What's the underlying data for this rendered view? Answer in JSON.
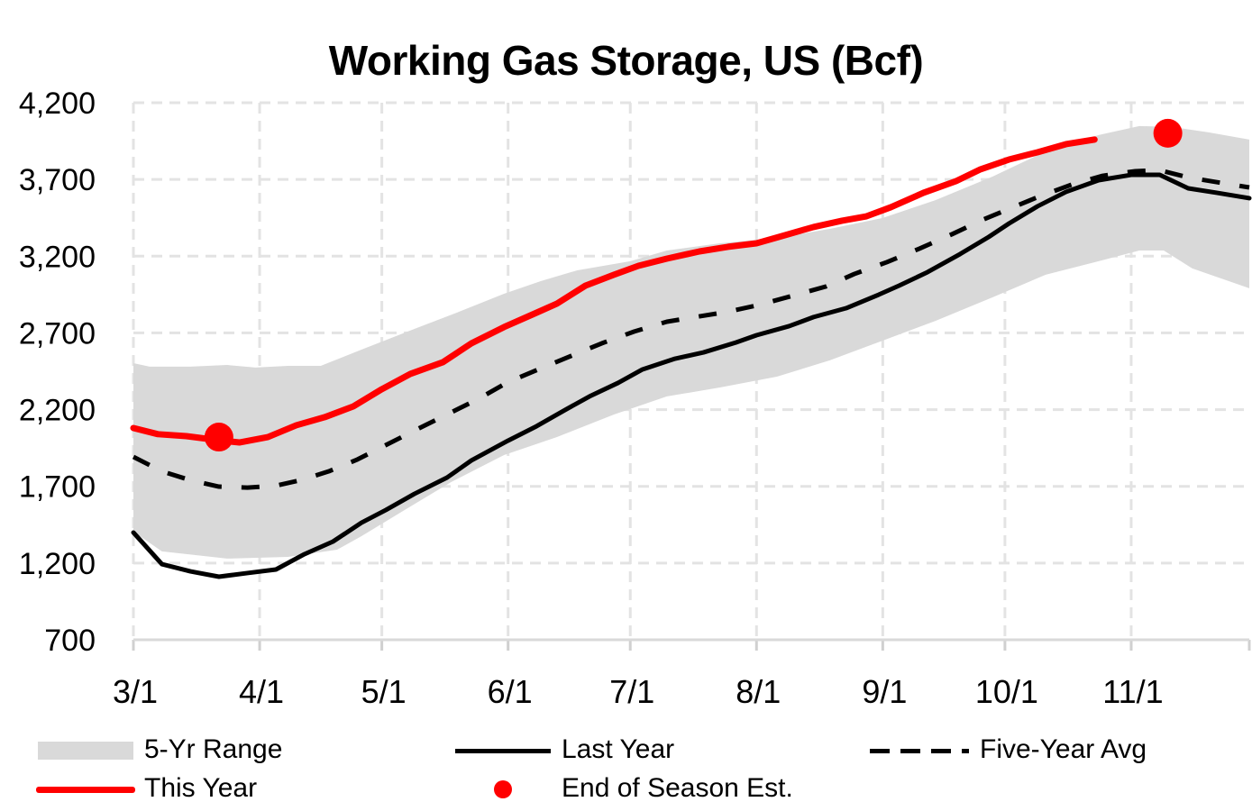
{
  "chart_data": {
    "type": "line",
    "title": "Working Gas Storage, US (Bcf)",
    "xlabel": "",
    "ylabel": "",
    "xlim": [
      "3/1",
      "11/30"
    ],
    "ylim": [
      700,
      4200
    ],
    "y_ticks": [
      "700",
      "1,200",
      "1,700",
      "2,200",
      "2,700",
      "3,200",
      "3,700",
      "4,200"
    ],
    "y_tick_values": [
      700,
      1200,
      1700,
      2200,
      2700,
      3200,
      3700,
      4200
    ],
    "x_ticks": [
      "3/1",
      "4/1",
      "5/1",
      "6/1",
      "7/1",
      "8/1",
      "9/1",
      "10/1",
      "11/1"
    ],
    "grid": true,
    "legend_placement": "bottom",
    "band": {
      "name": "5-Yr Range",
      "color": "#d9d9d9",
      "upper": [
        [
          "3/1",
          2503
        ],
        [
          "3/5",
          2480
        ],
        [
          "3/15",
          2480
        ],
        [
          "3/24",
          2491
        ],
        [
          "3/31",
          2474
        ],
        [
          "4/8",
          2485
        ],
        [
          "4/16",
          2485
        ],
        [
          "4/26",
          2591
        ],
        [
          "5/9",
          2726
        ],
        [
          "5/20",
          2838
        ],
        [
          "5/31",
          2955
        ],
        [
          "6/9",
          3037
        ],
        [
          "6/18",
          3108
        ],
        [
          "7/1",
          3167
        ],
        [
          "7/10",
          3237
        ],
        [
          "7/23",
          3284
        ],
        [
          "8/6",
          3319
        ],
        [
          "8/19",
          3378
        ],
        [
          "9/1",
          3449
        ],
        [
          "9/14",
          3566
        ],
        [
          "9/28",
          3719
        ],
        [
          "10/11",
          3883
        ],
        [
          "10/24",
          3989
        ],
        [
          "11/3",
          4048
        ],
        [
          "11/11",
          4042
        ],
        [
          "11/20",
          4007
        ],
        [
          "11/30",
          3960
        ]
      ],
      "lower": [
        [
          "3/1",
          1405
        ],
        [
          "3/8",
          1276
        ],
        [
          "3/24",
          1229
        ],
        [
          "4/8",
          1240
        ],
        [
          "4/20",
          1287
        ],
        [
          "4/26",
          1375
        ],
        [
          "5/7",
          1552
        ],
        [
          "5/18",
          1728
        ],
        [
          "5/31",
          1904
        ],
        [
          "6/13",
          2021
        ],
        [
          "6/27",
          2168
        ],
        [
          "7/10",
          2286
        ],
        [
          "7/23",
          2344
        ],
        [
          "8/6",
          2415
        ],
        [
          "8/19",
          2521
        ],
        [
          "9/1",
          2650
        ],
        [
          "9/14",
          2779
        ],
        [
          "9/28",
          2932
        ],
        [
          "10/11",
          3079
        ],
        [
          "10/24",
          3167
        ],
        [
          "11/3",
          3237
        ],
        [
          "11/9",
          3237
        ],
        [
          "11/16",
          3120
        ],
        [
          "11/30",
          2991
        ]
      ]
    },
    "series": [
      {
        "name": "Last Year",
        "color": "#000000",
        "style": "solid",
        "points": [
          [
            "3/1",
            1399
          ],
          [
            "3/8",
            1193
          ],
          [
            "3/15",
            1146
          ],
          [
            "3/22",
            1111
          ],
          [
            "3/29",
            1135
          ],
          [
            "4/5",
            1158
          ],
          [
            "4/12",
            1258
          ],
          [
            "4/19",
            1340
          ],
          [
            "4/26",
            1463
          ],
          [
            "5/2",
            1546
          ],
          [
            "5/9",
            1651
          ],
          [
            "5/17",
            1757
          ],
          [
            "5/23",
            1869
          ],
          [
            "6/1",
            1998
          ],
          [
            "6/8",
            2092
          ],
          [
            "6/15",
            2198
          ],
          [
            "6/21",
            2286
          ],
          [
            "6/28",
            2374
          ],
          [
            "7/4",
            2462
          ],
          [
            "7/12",
            2532
          ],
          [
            "7/19",
            2573
          ],
          [
            "7/27",
            2638
          ],
          [
            "8/1",
            2685
          ],
          [
            "8/9",
            2744
          ],
          [
            "8/15",
            2803
          ],
          [
            "8/23",
            2861
          ],
          [
            "8/31",
            2949
          ],
          [
            "9/5",
            3008
          ],
          [
            "9/12",
            3096
          ],
          [
            "9/20",
            3214
          ],
          [
            "9/27",
            3325
          ],
          [
            "10/2",
            3413
          ],
          [
            "10/9",
            3525
          ],
          [
            "10/16",
            3619
          ],
          [
            "10/24",
            3695
          ],
          [
            "11/1",
            3730
          ],
          [
            "11/8",
            3730
          ],
          [
            "11/15",
            3642
          ],
          [
            "11/22",
            3613
          ],
          [
            "11/30",
            3578
          ]
        ]
      },
      {
        "name": "Five-Year Avg",
        "color": "#000000",
        "style": "dashed",
        "points": [
          [
            "3/1",
            1892
          ],
          [
            "3/8",
            1798
          ],
          [
            "3/15",
            1740
          ],
          [
            "3/22",
            1698
          ],
          [
            "3/29",
            1692
          ],
          [
            "4/5",
            1704
          ],
          [
            "4/11",
            1740
          ],
          [
            "4/18",
            1798
          ],
          [
            "4/25",
            1875
          ],
          [
            "5/2",
            1969
          ],
          [
            "5/9",
            2063
          ],
          [
            "5/17",
            2168
          ],
          [
            "5/25",
            2274
          ],
          [
            "6/1",
            2380
          ],
          [
            "6/9",
            2468
          ],
          [
            "6/17",
            2556
          ],
          [
            "6/24",
            2632
          ],
          [
            "7/2",
            2709
          ],
          [
            "7/10",
            2773
          ],
          [
            "7/18",
            2808
          ],
          [
            "7/25",
            2838
          ],
          [
            "8/2",
            2885
          ],
          [
            "8/10",
            2943
          ],
          [
            "8/18",
            3002
          ],
          [
            "8/25",
            3084
          ],
          [
            "9/2",
            3161
          ],
          [
            "9/10",
            3249
          ],
          [
            "9/18",
            3343
          ],
          [
            "9/25",
            3431
          ],
          [
            "10/3",
            3519
          ],
          [
            "10/10",
            3595
          ],
          [
            "10/18",
            3672
          ],
          [
            "10/25",
            3724
          ],
          [
            "11/2",
            3754
          ],
          [
            "11/8",
            3760
          ],
          [
            "11/15",
            3713
          ],
          [
            "11/23",
            3678
          ],
          [
            "11/30",
            3648
          ]
        ]
      },
      {
        "name": "This Year",
        "color": "#ff0000",
        "style": "solid",
        "points": [
          [
            "3/1",
            2080
          ],
          [
            "3/7",
            2040
          ],
          [
            "3/14",
            2027
          ],
          [
            "3/22",
            2000
          ],
          [
            "3/27",
            1986
          ],
          [
            "4/3",
            2021
          ],
          [
            "4/10",
            2098
          ],
          [
            "4/17",
            2151
          ],
          [
            "4/24",
            2221
          ],
          [
            "5/1",
            2333
          ],
          [
            "5/8",
            2433
          ],
          [
            "5/16",
            2509
          ],
          [
            "5/23",
            2632
          ],
          [
            "5/31",
            2738
          ],
          [
            "6/7",
            2820
          ],
          [
            "6/13",
            2891
          ],
          [
            "6/20",
            3008
          ],
          [
            "6/27",
            3079
          ],
          [
            "7/3",
            3137
          ],
          [
            "7/10",
            3184
          ],
          [
            "7/18",
            3231
          ],
          [
            "7/25",
            3261
          ],
          [
            "8/1",
            3284
          ],
          [
            "8/8",
            3337
          ],
          [
            "8/15",
            3390
          ],
          [
            "8/22",
            3431
          ],
          [
            "8/28",
            3460
          ],
          [
            "9/3",
            3519
          ],
          [
            "9/11",
            3613
          ],
          [
            "9/19",
            3689
          ],
          [
            "9/25",
            3766
          ],
          [
            "10/2",
            3830
          ],
          [
            "10/9",
            3877
          ],
          [
            "10/16",
            3930
          ],
          [
            "10/23",
            3960
          ]
        ]
      }
    ],
    "markers": {
      "name": "End of Season Est.",
      "color": "#ff0000",
      "points": [
        [
          "3/22",
          2021
        ],
        [
          "11/10",
          4001
        ]
      ]
    }
  },
  "legend": {
    "range": "5-Yr Range",
    "last_year": "Last Year",
    "avg": "Five-Year Avg",
    "this_year": "This Year",
    "est": "End of Season Est."
  }
}
